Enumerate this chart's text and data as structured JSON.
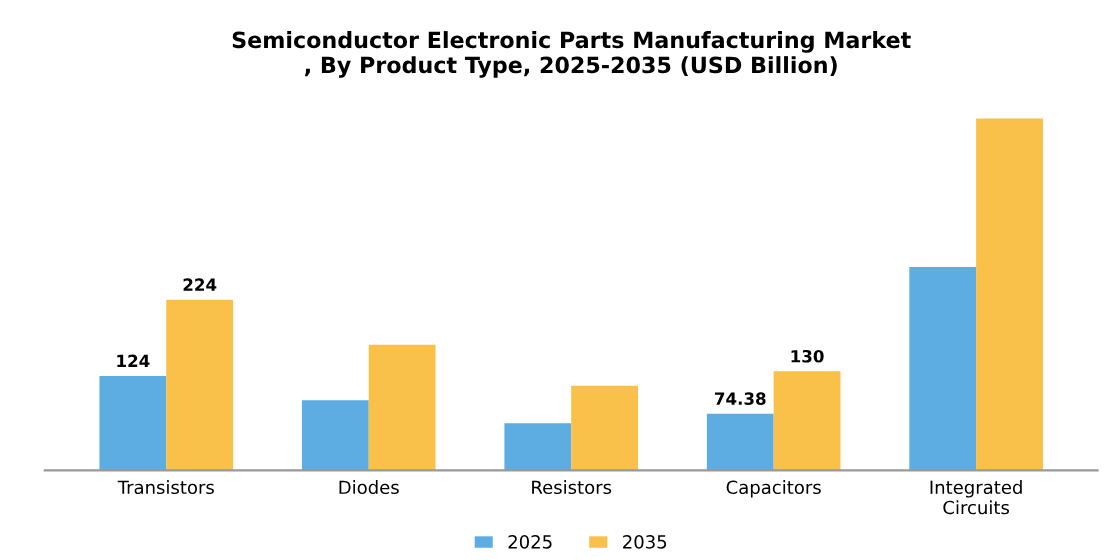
{
  "chart_data": {
    "type": "bar",
    "title": "Semiconductor Electronic Parts Manufacturing Market\n, By Product Type, 2025-2035 (USD Billion)",
    "categories": [
      "Transistors",
      "Diodes",
      "Resistors",
      "Capacitors",
      "Integrated Circuits"
    ],
    "series": [
      {
        "name": "2025",
        "color": "#5dade2",
        "values": [
          124,
          92,
          62,
          74.38,
          267
        ],
        "value_labels": [
          "124",
          null,
          null,
          "74.38",
          null
        ]
      },
      {
        "name": "2035",
        "color": "#f9c04a",
        "values": [
          224,
          165,
          111,
          130,
          462
        ],
        "value_labels": [
          "224",
          null,
          null,
          "130",
          null
        ]
      }
    ],
    "legend": "bottom",
    "grid": false
  }
}
